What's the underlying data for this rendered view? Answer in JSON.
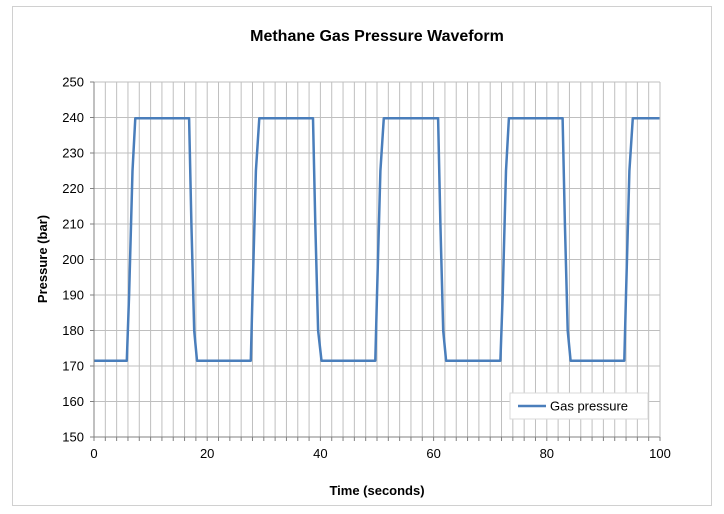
{
  "chart_data": {
    "type": "line",
    "title": "Methane Gas Pressure Waveform",
    "xlabel": "Time (seconds)",
    "ylabel": "Pressure (bar)",
    "xlim": [
      0,
      100
    ],
    "ylim": [
      150,
      250
    ],
    "x_ticks": [
      0,
      20,
      40,
      60,
      80,
      100
    ],
    "y_ticks": [
      150,
      160,
      170,
      180,
      190,
      200,
      210,
      220,
      230,
      240,
      250
    ],
    "grid": "vertical every 2 seconds, horizontal every 10 bar",
    "legend": {
      "position": "bottom-right"
    },
    "colors": {
      "series": "#4a7ebb",
      "grid": "#bfbfbf",
      "axis": "#808080"
    },
    "series": [
      {
        "name": "Gas pressure",
        "x": [
          0,
          5.8,
          6.2,
          6.8,
          7.3,
          16.8,
          17.2,
          17.7,
          18.2,
          27.7,
          28.0,
          28.6,
          29.2,
          38.7,
          39.1,
          39.6,
          40.2,
          49.7,
          50.0,
          50.6,
          51.2,
          60.8,
          61.2,
          61.7,
          62.2,
          71.8,
          72.2,
          72.8,
          73.3,
          82.8,
          83.2,
          83.7,
          84.2,
          93.7,
          94.0,
          94.6,
          95.2,
          100
        ],
        "y": [
          171.5,
          171.5,
          190,
          225,
          239.8,
          239.8,
          210,
          180,
          171.5,
          171.5,
          190,
          225,
          239.8,
          239.8,
          210,
          180,
          171.5,
          171.5,
          190,
          225,
          239.8,
          239.8,
          210,
          180,
          171.5,
          171.5,
          190,
          225,
          239.8,
          239.8,
          210,
          180,
          171.5,
          171.5,
          190,
          225,
          239.8,
          239.8
        ]
      }
    ]
  }
}
